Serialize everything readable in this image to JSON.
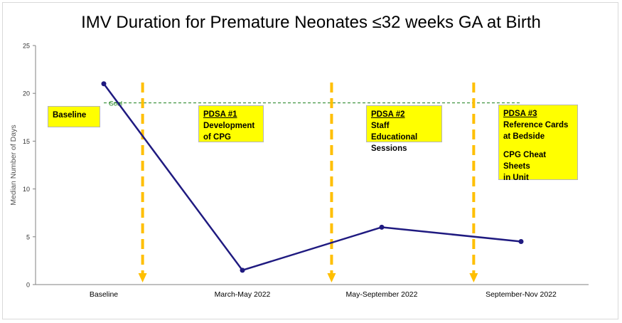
{
  "chart_data": {
    "type": "line",
    "title": "IMV Duration for Premature Neonates ≤32 weeks GA at Birth",
    "ylabel": "Median Number of Days",
    "xlabel": "",
    "ylim": [
      0,
      25
    ],
    "yticks": [
      0,
      5,
      10,
      15,
      20,
      25
    ],
    "categories": [
      "Baseline",
      "March-May 2022",
      "May-September 2022",
      "September-Nov 2022"
    ],
    "series": [
      {
        "values": [
          21,
          1.5,
          6,
          4.5
        ],
        "color": "#1f1a80"
      }
    ],
    "goal": {
      "label": "Goal",
      "value": 19,
      "color": "#1a7f1a"
    },
    "phase_markers": [
      {
        "x_between": [
          0,
          1
        ],
        "position": 0.28,
        "color": "#ffbf00"
      },
      {
        "x_between": [
          1,
          2
        ],
        "position": 0.64,
        "color": "#ffbf00"
      },
      {
        "x_between": [
          2,
          3
        ],
        "position": 0.66,
        "color": "#ffbf00"
      }
    ],
    "grid": false
  },
  "annotations": [
    {
      "head": "",
      "lines": [
        "Baseline"
      ]
    },
    {
      "head": "PDSA #1",
      "lines": [
        "Development",
        "of CPG"
      ]
    },
    {
      "head": "PDSA #2",
      "lines": [
        "Staff Educational",
        "Sessions"
      ]
    },
    {
      "head": "PDSA #3",
      "lines": [
        "Reference Cards",
        "at Bedside",
        "",
        "CPG Cheat Sheets",
        "in Unit"
      ]
    }
  ],
  "colors": {
    "annotation_bg": "#ffff00",
    "axis": "#808080"
  }
}
